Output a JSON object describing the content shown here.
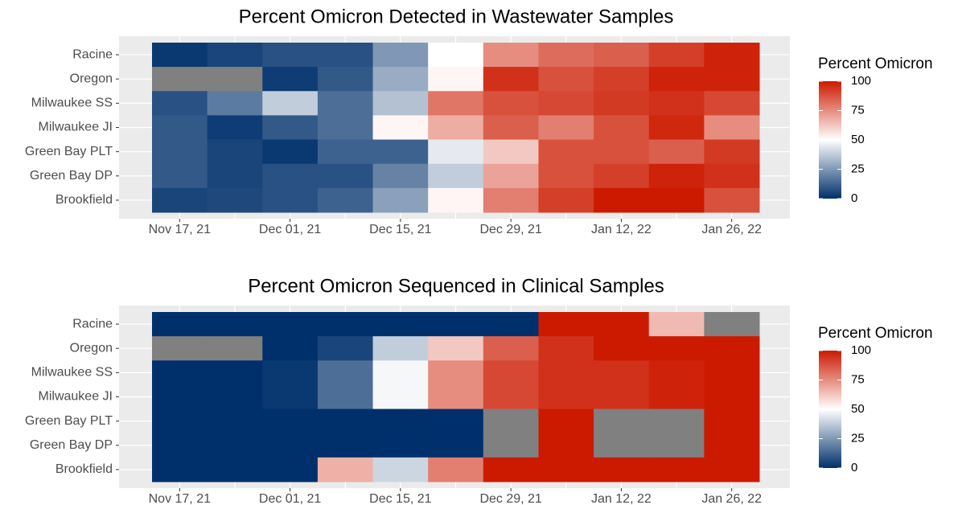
{
  "chart_data": [
    {
      "type": "heatmap",
      "title": "Percent Omicron Detected in Wastewater Samples",
      "categories": [
        "Nov 17, 21",
        null,
        "Dec 01, 21",
        null,
        "Dec 15, 21",
        null,
        "Dec 29, 21",
        null,
        "Jan 12, 22",
        null,
        "Jan 26, 22"
      ],
      "rows": [
        "Racine",
        "Oregon",
        "Milwaukee SS",
        "Milwaukee JI",
        "Green Bay PLT",
        "Green Bay DP",
        "Brookfield"
      ],
      "values": [
        [
          2,
          5,
          8,
          8,
          25,
          50,
          75,
          82,
          85,
          92,
          98
        ],
        [
          null,
          null,
          3,
          10,
          30,
          52,
          95,
          88,
          92,
          98,
          98
        ],
        [
          8,
          18,
          38,
          15,
          35,
          80,
          88,
          90,
          93,
          95,
          90
        ],
        [
          10,
          3,
          10,
          15,
          52,
          68,
          85,
          78,
          88,
          97,
          75
        ],
        [
          10,
          5,
          2,
          12,
          12,
          45,
          62,
          88,
          88,
          85,
          93
        ],
        [
          10,
          5,
          8,
          8,
          20,
          38,
          70,
          88,
          92,
          98,
          95
        ],
        [
          5,
          6,
          8,
          12,
          27,
          52,
          78,
          92,
          100,
          100,
          88
        ]
      ],
      "legend": {
        "title": "Percent Omicron",
        "lim": [
          0,
          100
        ],
        "ticks": [
          0,
          25,
          50,
          75,
          100
        ]
      },
      "colors": {
        "low": "#00306b",
        "mid": "#ffffff",
        "high": "#cc1a00",
        "na": "#808080"
      }
    },
    {
      "type": "heatmap",
      "title": "Percent Omicron Sequenced in Clinical Samples",
      "categories": [
        "Nov 17, 21",
        null,
        "Dec 01, 21",
        null,
        "Dec 15, 21",
        null,
        "Dec 29, 21",
        null,
        "Jan 12, 22",
        null,
        "Jan 26, 22"
      ],
      "rows": [
        "Racine",
        "Oregon",
        "Milwaukee SS",
        "Milwaukee JI",
        "Green Bay PLT",
        "Green Bay DP",
        "Brookfield"
      ],
      "values": [
        [
          0,
          0,
          0,
          0,
          0,
          0,
          0,
          100,
          100,
          65,
          null
        ],
        [
          null,
          null,
          0,
          5,
          38,
          62,
          85,
          95,
          100,
          100,
          100
        ],
        [
          0,
          0,
          2,
          15,
          48,
          75,
          90,
          95,
          95,
          98,
          100
        ],
        [
          0,
          0,
          2,
          15,
          48,
          75,
          90,
          95,
          95,
          98,
          100
        ],
        [
          0,
          0,
          0,
          0,
          0,
          0,
          null,
          100,
          null,
          null,
          100
        ],
        [
          0,
          0,
          0,
          0,
          0,
          0,
          null,
          100,
          null,
          null,
          100
        ],
        [
          0,
          0,
          0,
          67,
          40,
          78,
          100,
          100,
          100,
          100,
          100
        ]
      ],
      "legend": {
        "title": "Percent Omicron",
        "lim": [
          0,
          100
        ],
        "ticks": [
          0,
          25,
          50,
          75,
          100
        ]
      },
      "colors": {
        "low": "#00306b",
        "mid": "#ffffff",
        "high": "#cc1a00",
        "na": "#808080"
      }
    }
  ]
}
